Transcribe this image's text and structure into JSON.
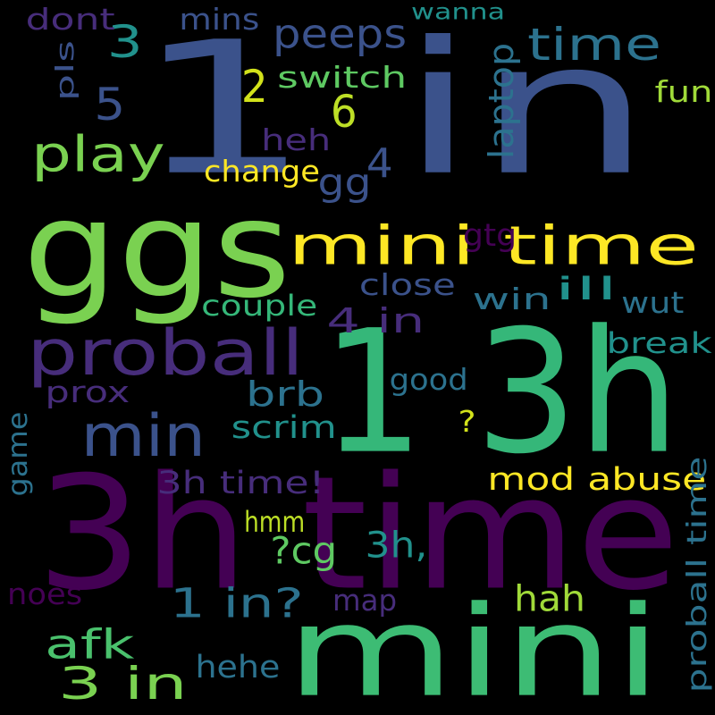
{
  "background": "#000000",
  "palette": {
    "dark_purple": "#440154",
    "purple": "#472d7b",
    "indigo": "#3b528b",
    "blue": "#2c728e",
    "teal": "#21918c",
    "green_teal": "#28ae80",
    "green": "#5ec962",
    "lime": "#addc30",
    "yellow": "#fde725"
  },
  "words": [
    {
      "text": "1 in",
      "color": "#3b528b"
    },
    {
      "text": "ggs",
      "color": "#7ad151"
    },
    {
      "text": "1 3h",
      "color": "#35b779"
    },
    {
      "text": "3h time",
      "color": "#440154"
    },
    {
      "text": "mini time",
      "color": "#fde725"
    },
    {
      "text": "mini",
      "color": "#3dbc74"
    },
    {
      "text": "proball",
      "color": "#472d7b"
    },
    {
      "text": "min",
      "color": "#3b528b"
    },
    {
      "text": "time",
      "color": "#2c728e"
    },
    {
      "text": "peeps",
      "color": "#3b528b"
    },
    {
      "text": "play",
      "color": "#7ad151"
    },
    {
      "text": "3",
      "color": "#21918c"
    },
    {
      "text": "2",
      "color": "#d2e21b"
    },
    {
      "text": "5",
      "color": "#3b528b"
    },
    {
      "text": "6",
      "color": "#bddf26"
    },
    {
      "text": "4",
      "color": "#3b528b"
    },
    {
      "text": "heh",
      "color": "#472d7b"
    },
    {
      "text": "gg",
      "color": "#3b528b"
    },
    {
      "text": "change",
      "color": "#fde725"
    },
    {
      "text": "switch",
      "color": "#5ec962"
    },
    {
      "text": "dont",
      "color": "#472d7b"
    },
    {
      "text": "mins",
      "color": "#3b528b"
    },
    {
      "text": "wanna",
      "color": "#21918c"
    },
    {
      "text": "pls",
      "color": "#3b528b"
    },
    {
      "text": "laptop",
      "color": "#2c728e"
    },
    {
      "text": "fun",
      "color": "#a0da39"
    },
    {
      "text": "gtg",
      "color": "#440154"
    },
    {
      "text": "close",
      "color": "#3b528b"
    },
    {
      "text": "win",
      "color": "#2c728e"
    },
    {
      "text": "ill",
      "color": "#21918c"
    },
    {
      "text": "wut",
      "color": "#2c728e"
    },
    {
      "text": "couple",
      "color": "#35b779"
    },
    {
      "text": "4 in",
      "color": "#472d7b"
    },
    {
      "text": "break",
      "color": "#21918c"
    },
    {
      "text": "good",
      "color": "#2c728e"
    },
    {
      "text": "prox",
      "color": "#472d7b"
    },
    {
      "text": "brb",
      "color": "#2c728e"
    },
    {
      "text": "scrim",
      "color": "#21918c"
    },
    {
      "text": "?",
      "color": "#d2e21b"
    },
    {
      "text": "game",
      "color": "#2c728e"
    },
    {
      "text": "mod abuse",
      "color": "#fde725"
    },
    {
      "text": "3h time!",
      "color": "#472d7b"
    },
    {
      "text": "proball time",
      "color": "#2c728e"
    },
    {
      "text": "hmm",
      "color": "#bddf26"
    },
    {
      "text": "?cg",
      "color": "#5ec962"
    },
    {
      "text": "3h,",
      "color": "#21918c"
    },
    {
      "text": "afk",
      "color": "#4ac16d"
    },
    {
      "text": "1 in?",
      "color": "#2c728e"
    },
    {
      "text": "hah",
      "color": "#a0da39"
    },
    {
      "text": "noes",
      "color": "#440154"
    },
    {
      "text": "map",
      "color": "#472d7b"
    },
    {
      "text": "3 in",
      "color": "#7ad151"
    },
    {
      "text": "hehe",
      "color": "#2c728e"
    }
  ]
}
